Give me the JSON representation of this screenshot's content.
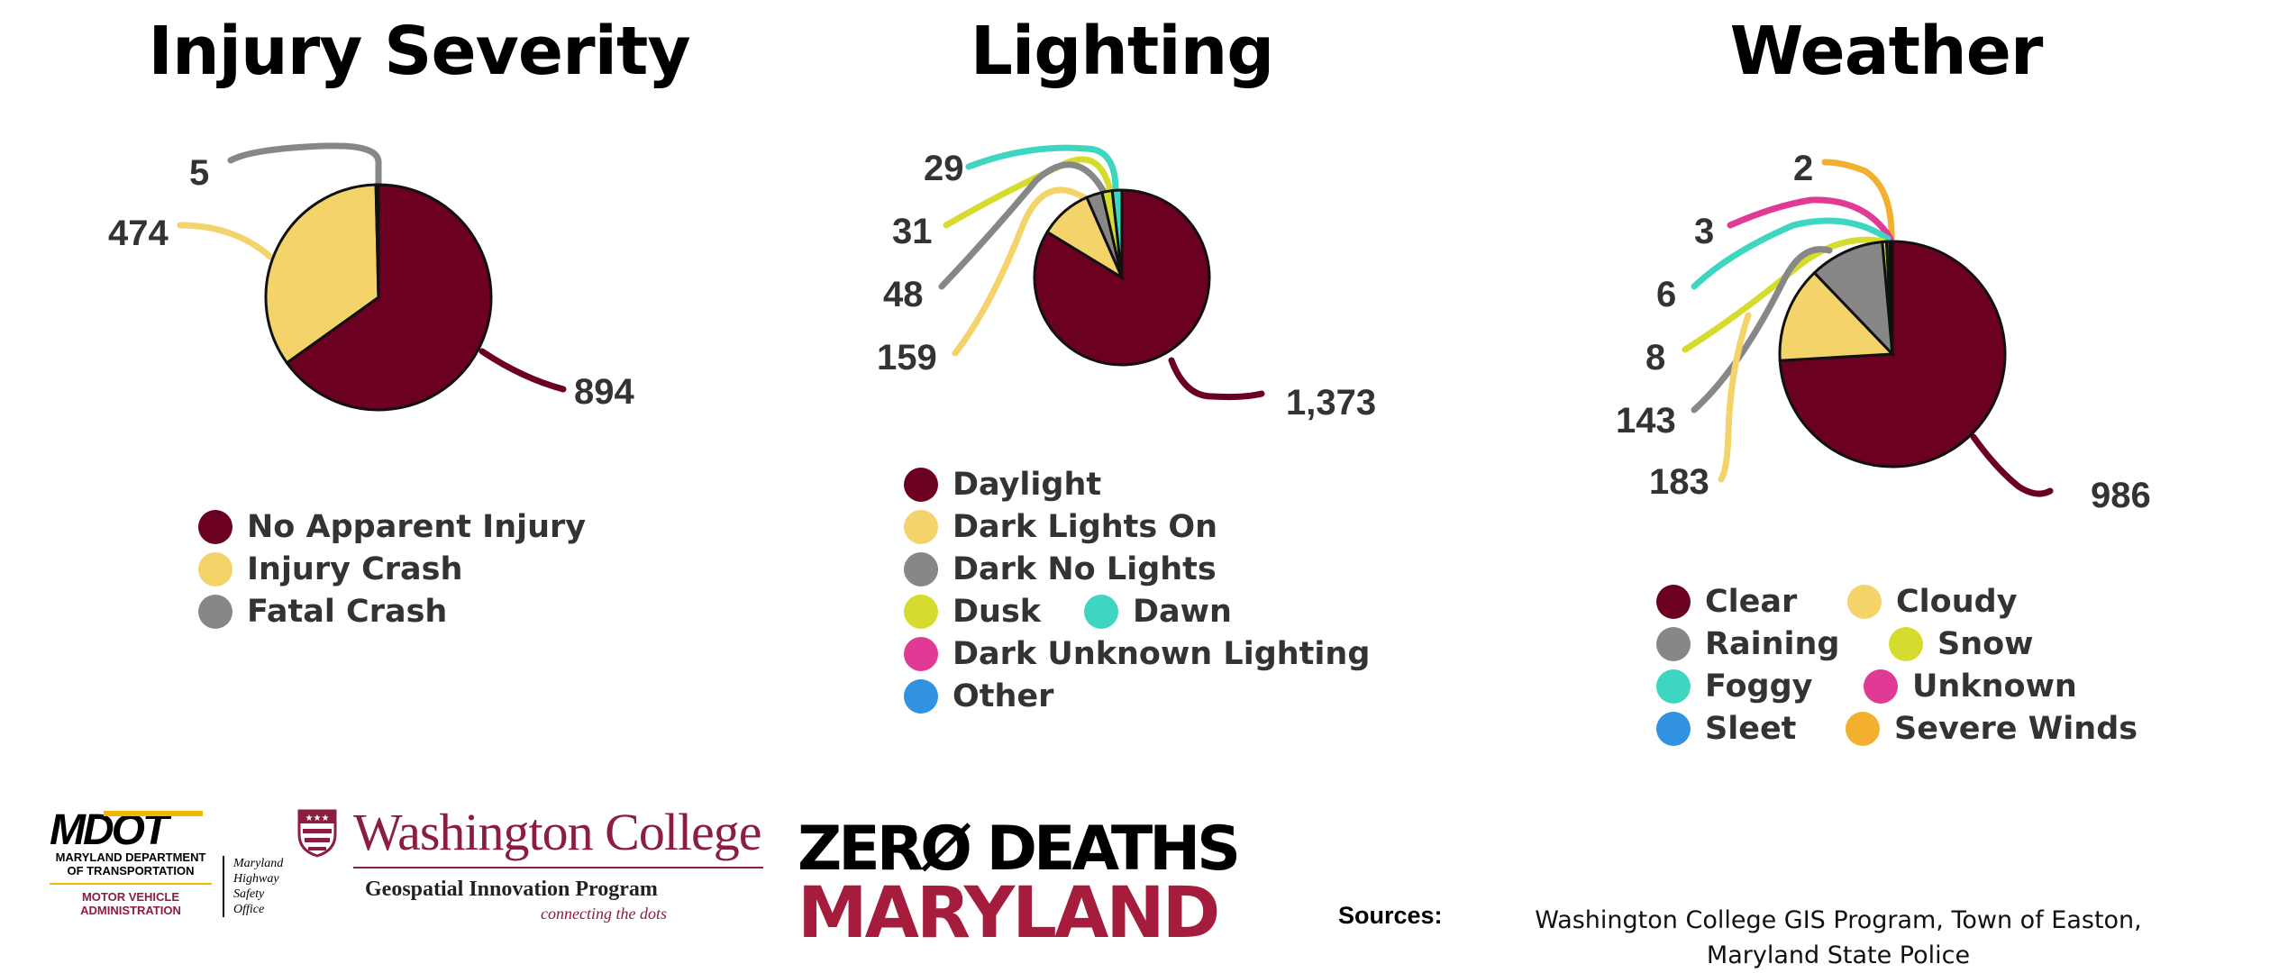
{
  "chart_data": [
    {
      "type": "pie",
      "title": "Injury Severity",
      "slices": [
        {
          "label": "No Apparent Injury",
          "value": 894,
          "value_label": "894",
          "color": "#6b0020"
        },
        {
          "label": "Injury Crash",
          "value": 474,
          "value_label": "474",
          "color": "#f3d36a"
        },
        {
          "label": "Fatal Crash",
          "value": 5,
          "value_label": "5",
          "color": "#878787"
        }
      ],
      "legend_placement": "bottom"
    },
    {
      "type": "pie",
      "title": "Lighting",
      "slices": [
        {
          "label": "Daylight",
          "value": 1373,
          "value_label": "1,373",
          "color": "#6b0020"
        },
        {
          "label": "Dark Lights On",
          "value": 159,
          "value_label": "159",
          "color": "#f3d36a"
        },
        {
          "label": "Dark No Lights",
          "value": 48,
          "value_label": "48",
          "color": "#878787"
        },
        {
          "label": "Dusk",
          "value": 31,
          "value_label": "31",
          "color": "#d6dc2e"
        },
        {
          "label": "Dawn",
          "value": 29,
          "value_label": "29",
          "color": "#3ed6c0"
        },
        {
          "label": "Dark Unknown Lighting",
          "value": 0,
          "value_label": "",
          "color": "#e03a94"
        },
        {
          "label": "Other",
          "value": 0,
          "value_label": "",
          "color": "#3092e0"
        }
      ],
      "legend_placement": "bottom"
    },
    {
      "type": "pie",
      "title": "Weather",
      "slices": [
        {
          "label": "Clear",
          "value": 986,
          "value_label": "986",
          "color": "#6b0020"
        },
        {
          "label": "Cloudy",
          "value": 183,
          "value_label": "183",
          "color": "#f3d36a"
        },
        {
          "label": "Raining",
          "value": 143,
          "value_label": "143",
          "color": "#878787"
        },
        {
          "label": "Snow",
          "value": 8,
          "value_label": "8",
          "color": "#d6dc2e"
        },
        {
          "label": "Foggy",
          "value": 6,
          "value_label": "6",
          "color": "#3ed6c0"
        },
        {
          "label": "Unknown",
          "value": 3,
          "value_label": "3",
          "color": "#e03a94"
        },
        {
          "label": "Sleet",
          "value": 0,
          "value_label": "",
          "color": "#3092e0"
        },
        {
          "label": "Severe Winds",
          "value": 2,
          "value_label": "2",
          "color": "#f2b02e"
        }
      ],
      "legend_placement": "bottom"
    }
  ],
  "logos": {
    "mdot": {
      "mark": "MDOT",
      "line1": "MARYLAND DEPARTMENT OF TRANSPORTATION",
      "line2": "MOTOR VEHICLE ADMINISTRATION",
      "office": "Maryland Highway Safety Office"
    },
    "washington_college": {
      "name": "Washington College",
      "program": "Geospatial Innovation Program",
      "tagline": "connecting the dots"
    },
    "zero_deaths": {
      "line1": "ZERØ DEATHS",
      "line2": "MARYLAND"
    }
  },
  "sources": {
    "label": "Sources:",
    "text": "Washington College GIS Program, Town of Easton, Maryland State Police"
  }
}
